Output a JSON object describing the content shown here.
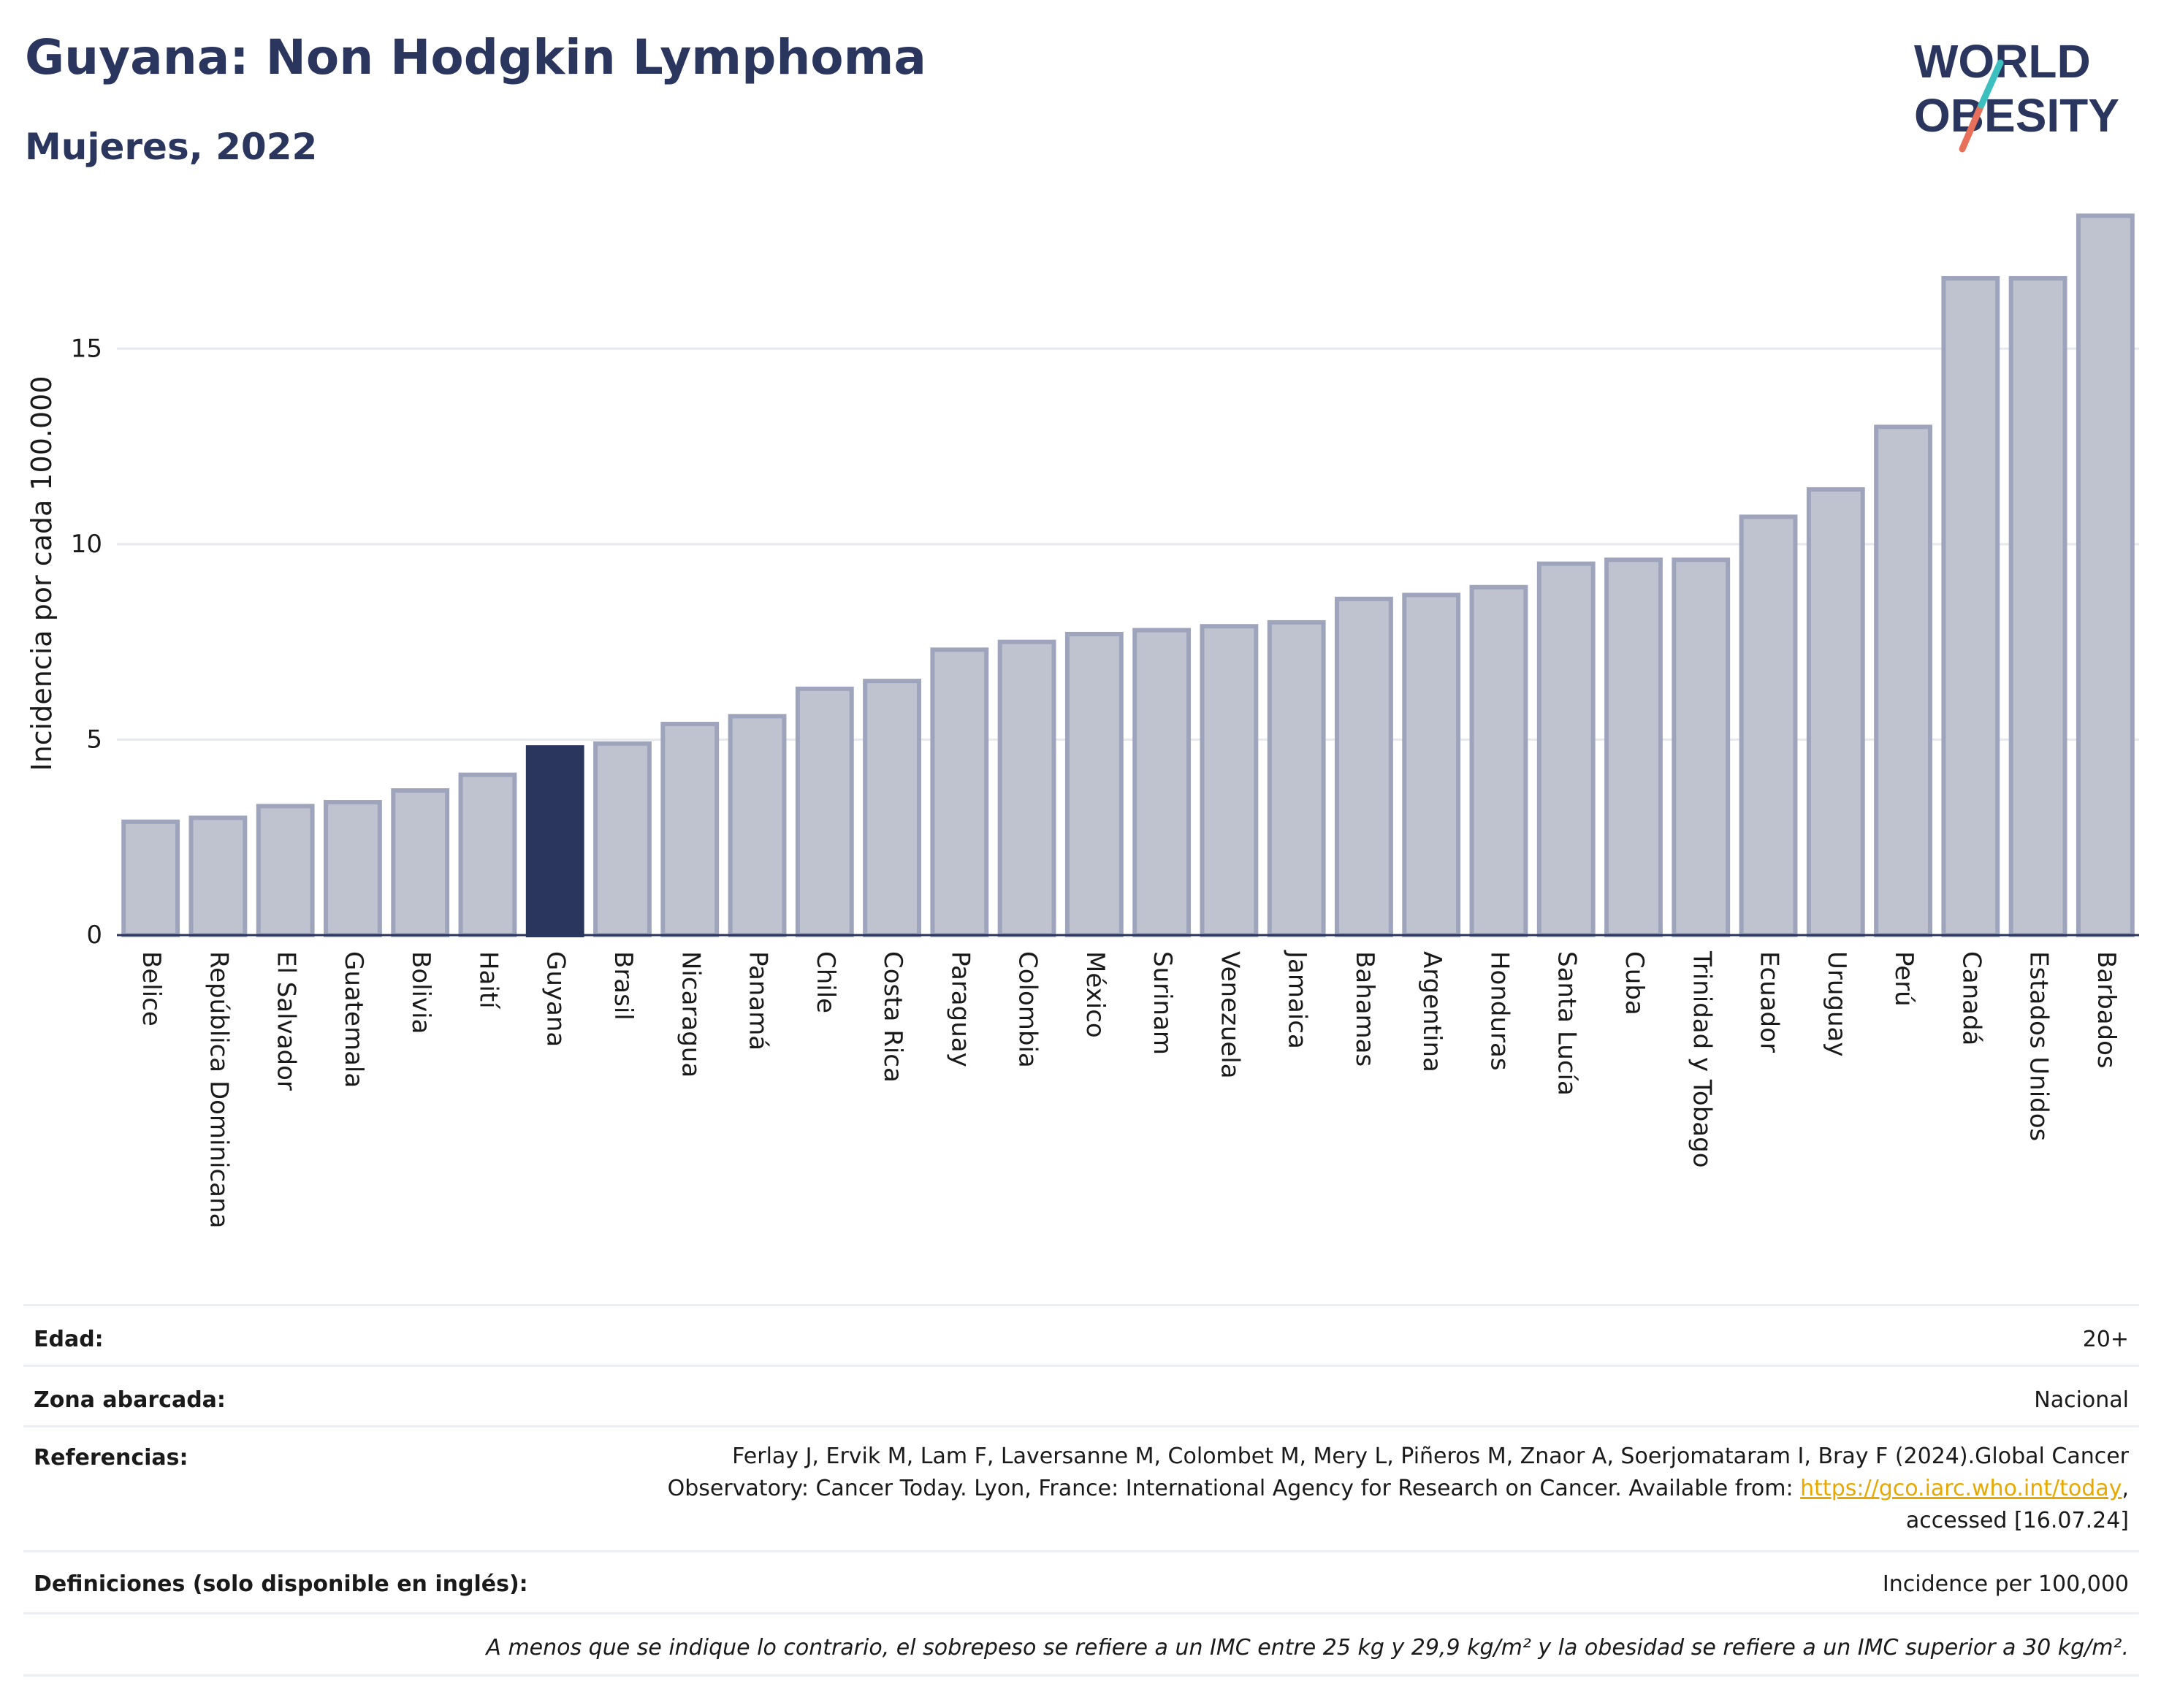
{
  "header": {
    "title": "Guyana: Non Hodgkin Lymphoma",
    "subtitle": "Mujeres, 2022"
  },
  "logo": {
    "line1": "WORLD",
    "line2": "OBESITY",
    "colors": {
      "text": "#2b365e",
      "slash_teal": "#3bbfbf",
      "slash_red": "#e8705a"
    }
  },
  "chart_data": {
    "type": "bar",
    "title": "Guyana: Non Hodgkin Lymphoma",
    "subtitle": "Mujeres, 2022",
    "xlabel": "",
    "ylabel": "Incidencia por cada 100.000",
    "ylim": [
      0,
      18.5
    ],
    "yticks": [
      0,
      5,
      10,
      15
    ],
    "grid": true,
    "highlight": "Guyana",
    "colors": {
      "bar": "#bfc3d0",
      "bar_border": "#9ea4bb",
      "highlight": "#2b365e",
      "grid": "#e6e8ef",
      "axis": "#2b365e"
    },
    "categories": [
      "Belice",
      "República Dominicana",
      "El Salvador",
      "Guatemala",
      "Bolivia",
      "Haití",
      "Guyana",
      "Brasil",
      "Nicaragua",
      "Panamá",
      "Chile",
      "Costa Rica",
      "Paraguay",
      "Colombia",
      "México",
      "Surinam",
      "Venezuela",
      "Jamaica",
      "Bahamas",
      "Argentina",
      "Honduras",
      "Santa Lucía",
      "Cuba",
      "Trinidad y Tobago",
      "Ecuador",
      "Uruguay",
      "Perú",
      "Canadá",
      "Estados Unidos",
      "Barbados"
    ],
    "values": [
      2.9,
      3.0,
      3.3,
      3.4,
      3.7,
      4.1,
      4.8,
      4.9,
      5.4,
      5.6,
      6.3,
      6.5,
      7.3,
      7.5,
      7.7,
      7.8,
      7.9,
      8.0,
      8.6,
      8.7,
      8.9,
      9.5,
      9.6,
      9.6,
      10.7,
      11.4,
      13.0,
      16.8,
      16.8,
      18.4
    ]
  },
  "info": {
    "edad_label": "Edad:",
    "edad_value": "20+",
    "zona_label": "Zona abarcada:",
    "zona_value": "Nacional",
    "ref_label": "Referencias:",
    "ref_line1": "Ferlay J, Ervik M, Lam F, Laversanne M, Colombet M, Mery L, Piñeros M, Znaor A, Soerjomataram I, Bray F (2024).Global Cancer",
    "ref_line2_pre": "Observatory: Cancer Today. Lyon, France: International Agency for Research on Cancer. Available from: ",
    "ref_link": "https://gco.iarc.who.int/today",
    "ref_line2_post": ",",
    "ref_line3": "accessed [16.07.24]",
    "def_label": "Definiciones (solo disponible en inglés):",
    "def_value": "Incidence per 100,000",
    "note": "A menos que se indique lo contrario, el sobrepeso se refiere a un IMC entre 25 kg y 29,9 kg/m² y la obesidad se refiere a un IMC superior a 30 kg/m²."
  }
}
